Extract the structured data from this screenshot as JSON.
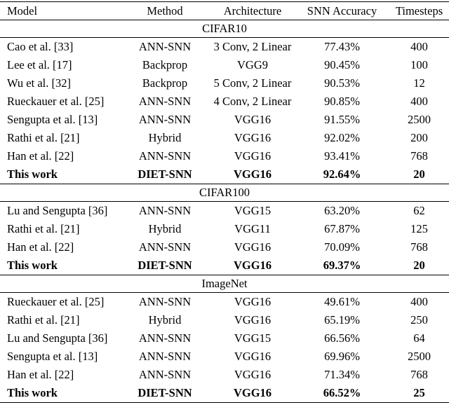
{
  "page": {
    "background_color": "#ffffff",
    "text_color": "#000000",
    "rule_color": "#000000"
  },
  "table": {
    "columns": [
      "Model",
      "Method",
      "Architecture",
      "SNN Accuracy",
      "Timesteps"
    ],
    "sections": [
      {
        "title": "CIFAR10",
        "rows": [
          {
            "model": "Cao et al. [33]",
            "method": "ANN-SNN",
            "architecture": "3 Conv, 2 Linear",
            "accuracy": "77.43%",
            "timesteps": "400",
            "bold": false
          },
          {
            "model": "Lee et al. [17]",
            "method": "Backprop",
            "architecture": "VGG9",
            "accuracy": "90.45%",
            "timesteps": "100",
            "bold": false
          },
          {
            "model": "Wu et al. [32]",
            "method": "Backprop",
            "architecture": "5 Conv, 2 Linear",
            "accuracy": "90.53%",
            "timesteps": "12",
            "bold": false
          },
          {
            "model": "Rueckauer et al. [25]",
            "method": "ANN-SNN",
            "architecture": "4 Conv, 2 Linear",
            "accuracy": "90.85%",
            "timesteps": "400",
            "bold": false
          },
          {
            "model": "Sengupta et al. [13]",
            "method": "ANN-SNN",
            "architecture": "VGG16",
            "accuracy": "91.55%",
            "timesteps": "2500",
            "bold": false
          },
          {
            "model": "Rathi et al. [21]",
            "method": "Hybrid",
            "architecture": "VGG16",
            "accuracy": "92.02%",
            "timesteps": "200",
            "bold": false
          },
          {
            "model": "Han et al. [22]",
            "method": "ANN-SNN",
            "architecture": "VGG16",
            "accuracy": "93.41%",
            "timesteps": "768",
            "bold": false
          },
          {
            "model": "This work",
            "method": "DIET-SNN",
            "architecture": "VGG16",
            "accuracy": "92.64%",
            "timesteps": "20",
            "bold": true
          }
        ]
      },
      {
        "title": "CIFAR100",
        "rows": [
          {
            "model": "Lu and Sengupta [36]",
            "method": "ANN-SNN",
            "architecture": "VGG15",
            "accuracy": "63.20%",
            "timesteps": "62",
            "bold": false
          },
          {
            "model": "Rathi et al. [21]",
            "method": "Hybrid",
            "architecture": "VGG11",
            "accuracy": "67.87%",
            "timesteps": "125",
            "bold": false
          },
          {
            "model": "Han et al. [22]",
            "method": "ANN-SNN",
            "architecture": "VGG16",
            "accuracy": "70.09%",
            "timesteps": "768",
            "bold": false
          },
          {
            "model": "This work",
            "method": "DIET-SNN",
            "architecture": "VGG16",
            "accuracy": "69.37%",
            "timesteps": "20",
            "bold": true
          }
        ]
      },
      {
        "title": "ImageNet",
        "rows": [
          {
            "model": "Rueckauer et al. [25]",
            "method": "ANN-SNN",
            "architecture": "VGG16",
            "accuracy": "49.61%",
            "timesteps": "400",
            "bold": false
          },
          {
            "model": "Rathi et al. [21]",
            "method": "Hybrid",
            "architecture": "VGG16",
            "accuracy": "65.19%",
            "timesteps": "250",
            "bold": false
          },
          {
            "model": "Lu and Sengupta [36]",
            "method": "ANN-SNN",
            "architecture": "VGG15",
            "accuracy": "66.56%",
            "timesteps": "64",
            "bold": false
          },
          {
            "model": "Sengupta et al. [13]",
            "method": "ANN-SNN",
            "architecture": "VGG16",
            "accuracy": "69.96%",
            "timesteps": "2500",
            "bold": false
          },
          {
            "model": "Han et al. [22]",
            "method": "ANN-SNN",
            "architecture": "VGG16",
            "accuracy": "71.34%",
            "timesteps": "768",
            "bold": false
          },
          {
            "model": "This work",
            "method": "DIET-SNN",
            "architecture": "VGG16",
            "accuracy": "66.52%",
            "timesteps": "25",
            "bold": true
          }
        ]
      }
    ]
  }
}
